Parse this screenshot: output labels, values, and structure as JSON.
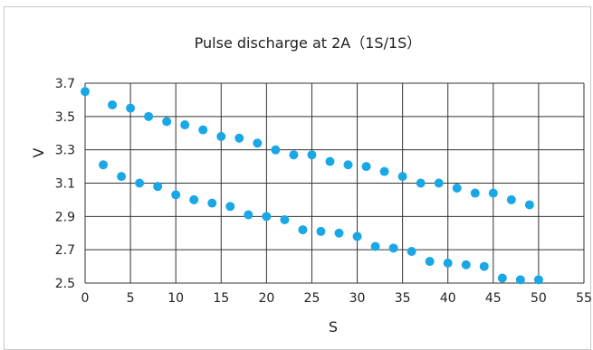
{
  "chart_data": {
    "type": "scatter",
    "title": "Pulse discharge at 2A（1S/1S）",
    "xlabel": "S",
    "ylabel": "V",
    "xlim": [
      0,
      55
    ],
    "ylim": [
      2.5,
      3.7
    ],
    "xticks": [
      0,
      5,
      10,
      15,
      20,
      25,
      30,
      35,
      40,
      45,
      50,
      55
    ],
    "yticks": [
      2.5,
      2.7,
      2.9,
      3.1,
      3.3,
      3.5,
      3.7
    ],
    "grid": true,
    "marker_color": "#1aa7e6",
    "series": [
      {
        "x": [
          0,
          3,
          5,
          7,
          9,
          11,
          13,
          15,
          17,
          19,
          21,
          23,
          25,
          27,
          29,
          31,
          33,
          35,
          37,
          39,
          41,
          43,
          45,
          47,
          49
        ],
        "y": [
          3.65,
          3.57,
          3.55,
          3.5,
          3.47,
          3.45,
          3.42,
          3.38,
          3.37,
          3.34,
          3.3,
          3.27,
          3.27,
          3.23,
          3.21,
          3.2,
          3.17,
          3.14,
          3.1,
          3.1,
          3.07,
          3.04,
          3.04,
          3.0,
          2.97
        ]
      },
      {
        "x": [
          2,
          4,
          6,
          8,
          10,
          12,
          14,
          16,
          18,
          20,
          22,
          24,
          26,
          28,
          30,
          32,
          34,
          36,
          38,
          40,
          42,
          44,
          46,
          48,
          50
        ],
        "y": [
          3.21,
          3.14,
          3.1,
          3.08,
          3.03,
          3.0,
          2.98,
          2.96,
          2.91,
          2.9,
          2.88,
          2.82,
          2.81,
          2.8,
          2.78,
          2.72,
          2.71,
          2.69,
          2.63,
          2.62,
          2.61,
          2.6,
          2.53,
          2.52,
          2.52
        ]
      }
    ]
  }
}
